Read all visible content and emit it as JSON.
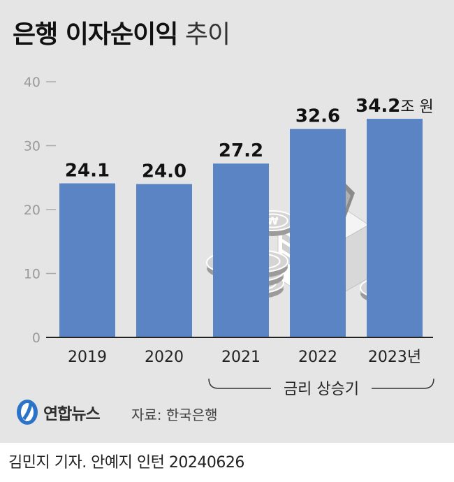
{
  "header": {
    "title_strong": "은행 이자순이익",
    "title_light": "추이"
  },
  "chart_data": {
    "type": "bar",
    "categories": [
      "2019",
      "2020",
      "2021",
      "2022",
      "2023"
    ],
    "category_suffix_last": "년",
    "values": [
      24.1,
      24.0,
      27.2,
      32.6,
      34.2
    ],
    "value_labels": [
      "24.1",
      "24.0",
      "27.2",
      "32.6",
      "34.2"
    ],
    "value_unit_last": "조 원",
    "y_ticks": [
      0,
      10,
      20,
      30,
      40
    ],
    "ylim": [
      0,
      40
    ],
    "bar_color": "#5b84c4",
    "annotation": {
      "label": "금리 상승기",
      "from_category": "2021",
      "to_category": "2023"
    }
  },
  "footer": {
    "logo_text": "연합뉴스",
    "source": "자료: 한국은행",
    "credit": "김민지 기자. 안예지 인턴  20240626"
  },
  "colors": {
    "background": "#e5e5e5",
    "bar": "#5b84c4",
    "text": "#111111"
  }
}
